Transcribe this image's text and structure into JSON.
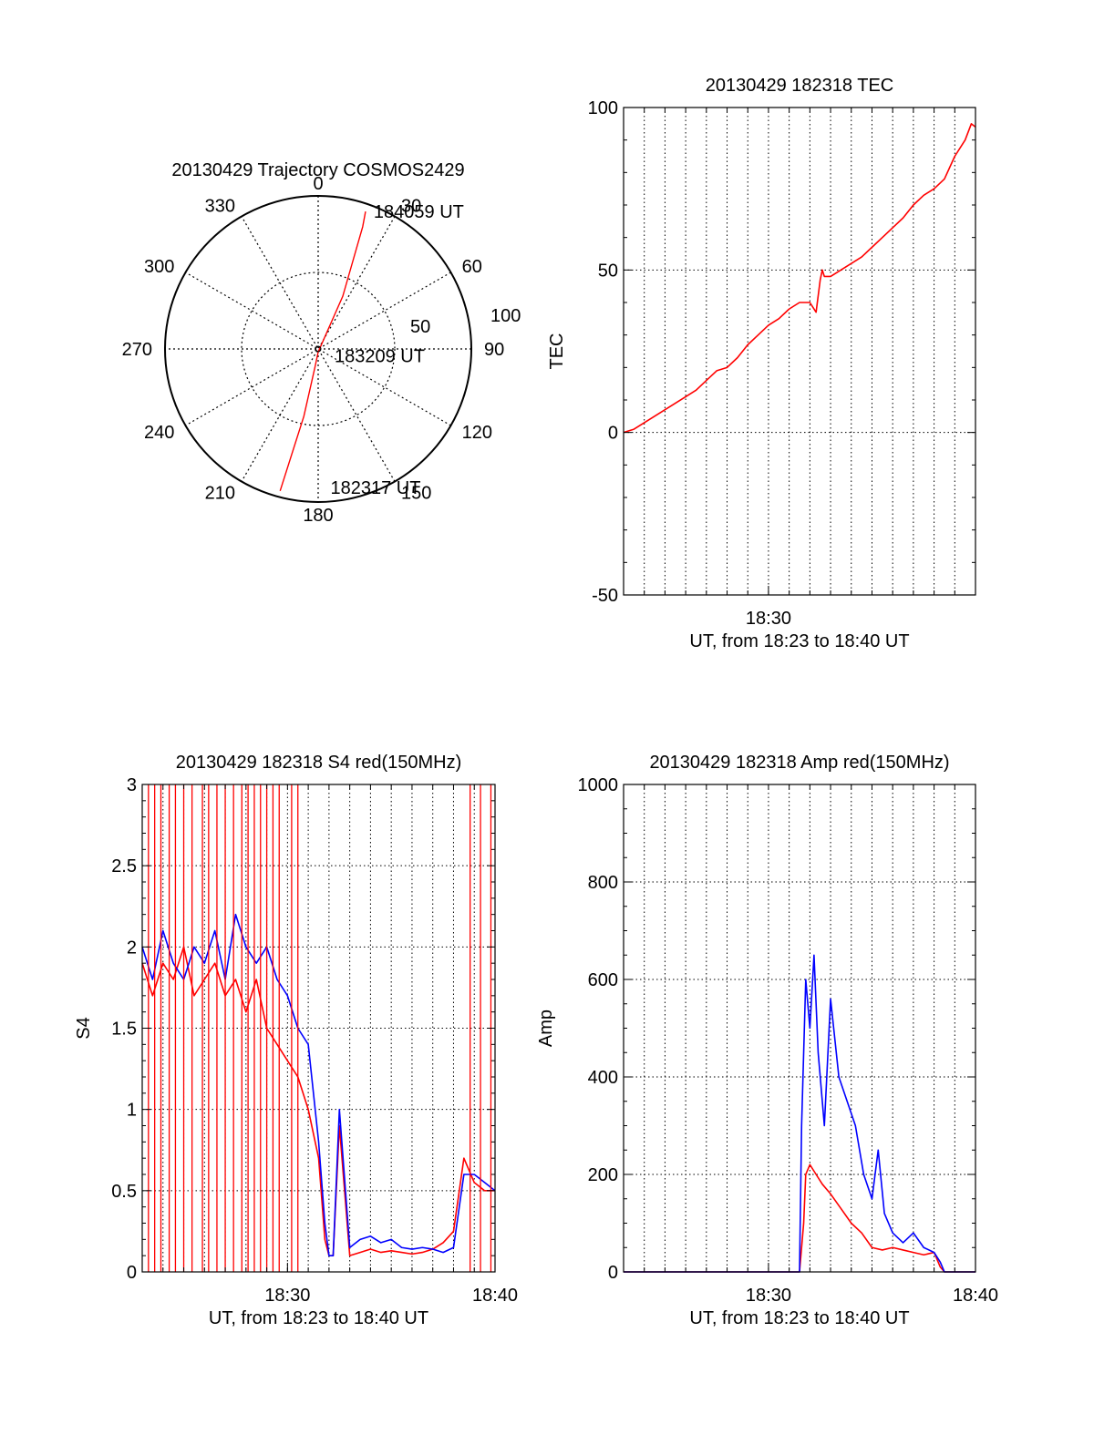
{
  "chart_data": [
    {
      "type": "polar-trajectory",
      "title": "20130429 Trajectory COSMOS2429",
      "azimuth_labels": [
        "0",
        "30",
        "60",
        "90",
        "120",
        "150",
        "180",
        "210",
        "240",
        "270",
        "300",
        "330"
      ],
      "radial_labels": [
        "50",
        "100"
      ],
      "radial_values": [
        50,
        100
      ],
      "rlim": [
        0,
        100
      ],
      "series": [
        {
          "color": "#ff0000",
          "points": [
            {
              "az": 195,
              "r": 96
            },
            {
              "az": 192,
              "r": 45
            },
            {
              "az": 190,
              "r": 12
            },
            {
              "az": 180,
              "r": 2
            },
            {
              "az": 25,
              "r": 38
            },
            {
              "az": 20,
              "r": 85
            },
            {
              "az": 19,
              "r": 95
            }
          ]
        }
      ],
      "annotations": [
        {
          "text": "184059 UT",
          "az": 22,
          "r": 100
        },
        {
          "text": "183209 UT",
          "az": 97,
          "r": 12
        },
        {
          "text": "182317 UT",
          "az": 174,
          "r": 88
        }
      ]
    },
    {
      "type": "line",
      "title": "20130429 182318 TEC",
      "xlabel": "UT, from 18:23 to 18:40 UT",
      "ylabel": "TEC",
      "x_ticks": [
        {
          "label": "18:30",
          "x": 7
        }
      ],
      "xlim": [
        0,
        17
      ],
      "ylim": [
        -50,
        100
      ],
      "y_ticks": [
        -50,
        0,
        50,
        100
      ],
      "grid": true,
      "series": [
        {
          "color": "#ff0000",
          "x": [
            0,
            0.5,
            1,
            1.5,
            2,
            2.5,
            3,
            3.5,
            4,
            4.5,
            5,
            5.5,
            6,
            6.5,
            7,
            7.5,
            8,
            8.5,
            9,
            9.3,
            9.5,
            9.6,
            9.7,
            10,
            10.5,
            11,
            11.5,
            12,
            12.5,
            13,
            13.5,
            14,
            14.5,
            15,
            15.5,
            16,
            16.5,
            16.8,
            17
          ],
          "y": [
            0,
            1,
            3,
            5,
            7,
            9,
            11,
            13,
            16,
            19,
            20,
            23,
            27,
            30,
            33,
            35,
            38,
            40,
            40,
            37,
            47,
            50,
            48,
            48,
            50,
            52,
            54,
            57,
            60,
            63,
            66,
            70,
            73,
            75,
            78,
            85,
            90,
            95,
            94
          ]
        }
      ]
    },
    {
      "type": "line",
      "title": "20130429 182318 S4 red(150MHz)",
      "xlabel": "UT, from 18:23 to 18:40 UT",
      "ylabel": "S4",
      "x_ticks": [
        {
          "label": "18:30",
          "x": 7
        },
        {
          "label": "18:40",
          "x": 17
        }
      ],
      "xlim": [
        0,
        17
      ],
      "ylim": [
        0,
        3
      ],
      "y_ticks": [
        "0",
        "0.5",
        "1",
        "1.5",
        "2",
        "2.5",
        "3"
      ],
      "y_tick_values": [
        0,
        0.5,
        1,
        1.5,
        2,
        2.5,
        3
      ],
      "grid": true,
      "series": [
        {
          "color": "#ff0000",
          "x": [
            0,
            0.5,
            1,
            1.5,
            2,
            2.5,
            3,
            3.5,
            4,
            4.5,
            5,
            5.5,
            6,
            6.5,
            7,
            7.5,
            8,
            8.5,
            8.8,
            9,
            9.2,
            9.5,
            10,
            10.5,
            11,
            11.5,
            12,
            12.5,
            13,
            13.5,
            14,
            14.5,
            15,
            15.5,
            16,
            16.5,
            17
          ],
          "y": [
            1.9,
            1.7,
            1.9,
            1.8,
            2.0,
            1.7,
            1.8,
            1.9,
            1.7,
            1.8,
            1.6,
            1.8,
            1.5,
            1.4,
            1.3,
            1.2,
            1.0,
            0.7,
            0.2,
            0.1,
            0.1,
            0.9,
            0.1,
            0.12,
            0.14,
            0.12,
            0.13,
            0.12,
            0.11,
            0.12,
            0.14,
            0.18,
            0.25,
            0.7,
            0.55,
            0.5,
            0.5
          ]
        },
        {
          "color": "#0000ff",
          "x": [
            0,
            0.5,
            1,
            1.5,
            2,
            2.5,
            3,
            3.5,
            4,
            4.5,
            5,
            5.5,
            6,
            6.5,
            7,
            7.5,
            8,
            8.5,
            8.8,
            9,
            9.2,
            9.5,
            10,
            10.5,
            11,
            11.5,
            12,
            12.5,
            13,
            13.5,
            14,
            14.5,
            15,
            15.5,
            16,
            16.5,
            17
          ],
          "y": [
            2.0,
            1.8,
            2.1,
            1.9,
            1.8,
            2.0,
            1.9,
            2.1,
            1.8,
            2.2,
            2.0,
            1.9,
            2.0,
            1.8,
            1.7,
            1.5,
            1.4,
            0.8,
            0.3,
            0.1,
            0.1,
            1.0,
            0.15,
            0.2,
            0.22,
            0.18,
            0.2,
            0.15,
            0.14,
            0.15,
            0.14,
            0.12,
            0.15,
            0.6,
            0.6,
            0.55,
            0.5
          ]
        },
        {
          "color": "#ff0000",
          "style": "spikes-to-top",
          "x": [
            0.3,
            0.6,
            0.9,
            1.3,
            1.6,
            2.0,
            2.4,
            2.9,
            3.2,
            3.6,
            4.0,
            4.4,
            4.8,
            5.1,
            5.4,
            5.7,
            6.0,
            6.3,
            6.6,
            7.2,
            7.5,
            15.8,
            16.3,
            16.8
          ]
        }
      ]
    },
    {
      "type": "line",
      "title": "20130429 182318 Amp red(150MHz)",
      "xlabel": "UT, from 18:23 to 18:40 UT",
      "ylabel": "Amp",
      "x_ticks": [
        {
          "label": "18:30",
          "x": 7
        },
        {
          "label": "18:40",
          "x": 17
        }
      ],
      "xlim": [
        0,
        17
      ],
      "ylim": [
        0,
        1000
      ],
      "y_ticks": [
        0,
        200,
        400,
        600,
        800,
        1000
      ],
      "grid": true,
      "series": [
        {
          "color": "#ff0000",
          "x": [
            0,
            8.5,
            8.7,
            8.8,
            9.0,
            9.3,
            9.6,
            10.0,
            10.5,
            11.0,
            11.5,
            12.0,
            12.5,
            13.0,
            13.5,
            14.0,
            14.5,
            15.0,
            15.3,
            15.5,
            17
          ],
          "y": [
            0,
            0,
            100,
            200,
            220,
            200,
            180,
            160,
            130,
            100,
            80,
            50,
            45,
            50,
            45,
            40,
            35,
            40,
            10,
            0,
            0
          ]
        },
        {
          "color": "#0000ff",
          "x": [
            0,
            8.5,
            8.6,
            8.8,
            9.0,
            9.2,
            9.4,
            9.7,
            10.0,
            10.4,
            10.8,
            11.2,
            11.6,
            12.0,
            12.3,
            12.6,
            13.0,
            13.5,
            14.0,
            14.5,
            15.0,
            15.3,
            15.5,
            17
          ],
          "y": [
            0,
            0,
            300,
            600,
            500,
            650,
            450,
            300,
            560,
            400,
            350,
            300,
            200,
            150,
            250,
            120,
            80,
            60,
            80,
            50,
            40,
            20,
            0,
            0
          ]
        }
      ]
    }
  ]
}
